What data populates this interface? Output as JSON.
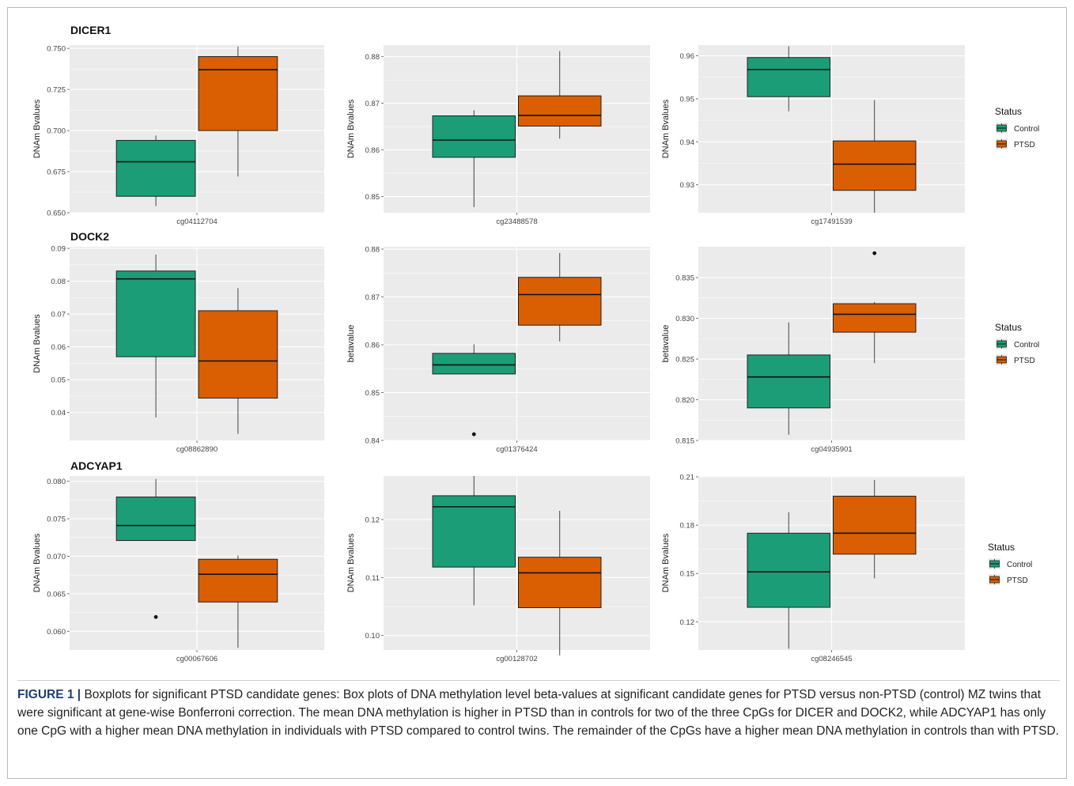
{
  "figure": {
    "caption_label": "FIGURE 1 |",
    "caption_text": " Boxplots for significant PTSD candidate genes: Box plots of DNA methylation level beta-values at significant candidate genes for PTSD versus non-PTSD (control) MZ twins that were significant at gene-wise Bonferroni correction. The mean DNA methylation is higher in PTSD than in controls for two of the three CpGs for DICER and DOCK2, while ADCYAP1 has only one CpG with a higher mean DNA methylation in individuals with PTSD compared to control twins. The remainder of the CpGs have a higher mean DNA methylation in controls than with PTSD."
  },
  "colors": {
    "panel_bg": "#ebebeb",
    "grid": "#ffffff",
    "control": "#1b9e77",
    "ptsd": "#d95f02"
  },
  "legend": {
    "title": "Status",
    "items": [
      "Control",
      "PTSD"
    ]
  },
  "chart_data": [
    {
      "type": "box",
      "gene": "DICER1",
      "xlabel": "cg04112704",
      "ylabel": "DNAm Bvalues",
      "ylim": [
        0.65,
        0.752
      ],
      "yticks": [
        0.65,
        0.675,
        0.7,
        0.725,
        0.75
      ],
      "tick_labels": [
        "0.650",
        "0.675",
        "0.700",
        "0.725",
        "0.750"
      ],
      "series": [
        {
          "name": "Control",
          "whisker_low": 0.654,
          "q1": 0.66,
          "median": 0.681,
          "q3": 0.694,
          "whisker_high": 0.697,
          "outliers": []
        },
        {
          "name": "PTSD",
          "whisker_low": 0.672,
          "q1": 0.7,
          "median": 0.737,
          "q3": 0.745,
          "whisker_high": 0.751,
          "outliers": []
        }
      ]
    },
    {
      "type": "box",
      "gene": "",
      "xlabel": "cg23488578",
      "ylabel": "DNAm Bvalues",
      "ylim": [
        0.8465,
        0.8825
      ],
      "yticks": [
        0.85,
        0.86,
        0.87,
        0.88
      ],
      "tick_labels": [
        "0.85",
        "0.86",
        "0.87",
        "0.88"
      ],
      "series": [
        {
          "name": "Control",
          "whisker_low": 0.8477,
          "q1": 0.8584,
          "median": 0.8621,
          "q3": 0.8673,
          "whisker_high": 0.8685,
          "outliers": []
        },
        {
          "name": "PTSD",
          "whisker_low": 0.8624,
          "q1": 0.8651,
          "median": 0.8674,
          "q3": 0.8716,
          "whisker_high": 0.8812,
          "outliers": []
        }
      ]
    },
    {
      "type": "box",
      "gene": "",
      "xlabel": "cg17491539",
      "ylabel": "DNAm Bvalues",
      "ylim": [
        0.9235,
        0.9625
      ],
      "yticks": [
        0.93,
        0.94,
        0.95,
        0.96
      ],
      "tick_labels": [
        "0.93",
        "0.94",
        "0.95",
        "0.96"
      ],
      "series": [
        {
          "name": "Control",
          "whisker_low": 0.9471,
          "q1": 0.9505,
          "median": 0.9568,
          "q3": 0.9596,
          "whisker_high": 0.9622,
          "outliers": []
        },
        {
          "name": "PTSD",
          "whisker_low": 0.9235,
          "q1": 0.9287,
          "median": 0.9348,
          "q3": 0.9402,
          "whisker_high": 0.9497,
          "outliers": []
        }
      ]
    },
    {
      "type": "box",
      "gene": "DOCK2",
      "xlabel": "cg08862890",
      "ylabel": "DNAm Bvalues",
      "ylim": [
        0.0315,
        0.0905
      ],
      "yticks": [
        0.04,
        0.05,
        0.06,
        0.07,
        0.08,
        0.09
      ],
      "tick_labels": [
        "0.04",
        "0.05",
        "0.06",
        "0.07",
        "0.08",
        "0.09"
      ],
      "series": [
        {
          "name": "Control",
          "whisker_low": 0.0385,
          "q1": 0.057,
          "median": 0.0807,
          "q3": 0.0831,
          "whisker_high": 0.0881,
          "outliers": []
        },
        {
          "name": "PTSD",
          "whisker_low": 0.0335,
          "q1": 0.0444,
          "median": 0.0557,
          "q3": 0.071,
          "whisker_high": 0.0779,
          "outliers": []
        }
      ]
    },
    {
      "type": "box",
      "gene": "",
      "xlabel": "cg01376424",
      "ylabel": "betavalue",
      "ylim": [
        0.84,
        0.8805
      ],
      "yticks": [
        0.84,
        0.85,
        0.86,
        0.87,
        0.88
      ],
      "tick_labels": [
        "0.84",
        "0.85",
        "0.86",
        "0.87",
        "0.88"
      ],
      "series": [
        {
          "name": "Control",
          "whisker_low": 0.8539,
          "q1": 0.8539,
          "median": 0.8558,
          "q3": 0.8582,
          "whisker_high": 0.8601,
          "outliers": [
            0.8413
          ]
        },
        {
          "name": "PTSD",
          "whisker_low": 0.8607,
          "q1": 0.8641,
          "median": 0.8705,
          "q3": 0.8741,
          "whisker_high": 0.8792,
          "outliers": []
        }
      ]
    },
    {
      "type": "box",
      "gene": "",
      "xlabel": "cg04935901",
      "ylabel": "betavalue",
      "ylim": [
        0.815,
        0.8388
      ],
      "yticks": [
        0.815,
        0.82,
        0.825,
        0.83,
        0.835
      ],
      "tick_labels": [
        "0.815",
        "0.820",
        "0.825",
        "0.830",
        "0.835"
      ],
      "series": [
        {
          "name": "Control",
          "whisker_low": 0.8157,
          "q1": 0.819,
          "median": 0.8228,
          "q3": 0.8255,
          "whisker_high": 0.8295,
          "outliers": []
        },
        {
          "name": "PTSD",
          "whisker_low": 0.8245,
          "q1": 0.8283,
          "median": 0.8305,
          "q3": 0.8318,
          "whisker_high": 0.832,
          "outliers": [
            0.838
          ]
        }
      ]
    },
    {
      "type": "box",
      "gene": "ADCYAP1",
      "xlabel": "cg00067606",
      "ylabel": "DNAm Bvalues",
      "ylim": [
        0.0575,
        0.0807
      ],
      "yticks": [
        0.06,
        0.065,
        0.07,
        0.075,
        0.08
      ],
      "tick_labels": [
        "0.060",
        "0.065",
        "0.070",
        "0.075",
        "0.080"
      ],
      "series": [
        {
          "name": "Control",
          "whisker_low": 0.0721,
          "q1": 0.0721,
          "median": 0.0741,
          "q3": 0.0779,
          "whisker_high": 0.0803,
          "outliers": [
            0.0619
          ]
        },
        {
          "name": "PTSD",
          "whisker_low": 0.0578,
          "q1": 0.0639,
          "median": 0.0676,
          "q3": 0.0696,
          "whisker_high": 0.0701,
          "outliers": []
        }
      ]
    },
    {
      "type": "box",
      "gene": "",
      "xlabel": "cg00128702",
      "ylabel": "DNAm Bvalues",
      "ylim": [
        0.0975,
        0.1275
      ],
      "yticks": [
        0.1,
        0.11,
        0.12
      ],
      "tick_labels": [
        "0.10",
        "0.11",
        "0.12"
      ],
      "series": [
        {
          "name": "Control",
          "whisker_low": 0.1052,
          "q1": 0.1118,
          "median": 0.1222,
          "q3": 0.1241,
          "whisker_high": 0.1275,
          "outliers": []
        },
        {
          "name": "PTSD",
          "whisker_low": 0.0966,
          "q1": 0.1048,
          "median": 0.1108,
          "q3": 0.1135,
          "whisker_high": 0.1215,
          "outliers": []
        }
      ]
    },
    {
      "type": "box",
      "gene": "",
      "xlabel": "cg08246545",
      "ylabel": "DNAm Bvalues",
      "ylim": [
        0.1025,
        0.2105
      ],
      "yticks": [
        0.12,
        0.15,
        0.18,
        0.21
      ],
      "tick_labels": [
        "0.12",
        "0.15",
        "0.18",
        "0.21"
      ],
      "series": [
        {
          "name": "Control",
          "whisker_low": 0.1033,
          "q1": 0.129,
          "median": 0.151,
          "q3": 0.175,
          "whisker_high": 0.188,
          "outliers": []
        },
        {
          "name": "PTSD",
          "whisker_low": 0.147,
          "q1": 0.162,
          "median": 0.175,
          "q3": 0.198,
          "whisker_high": 0.208,
          "outliers": []
        }
      ]
    }
  ]
}
